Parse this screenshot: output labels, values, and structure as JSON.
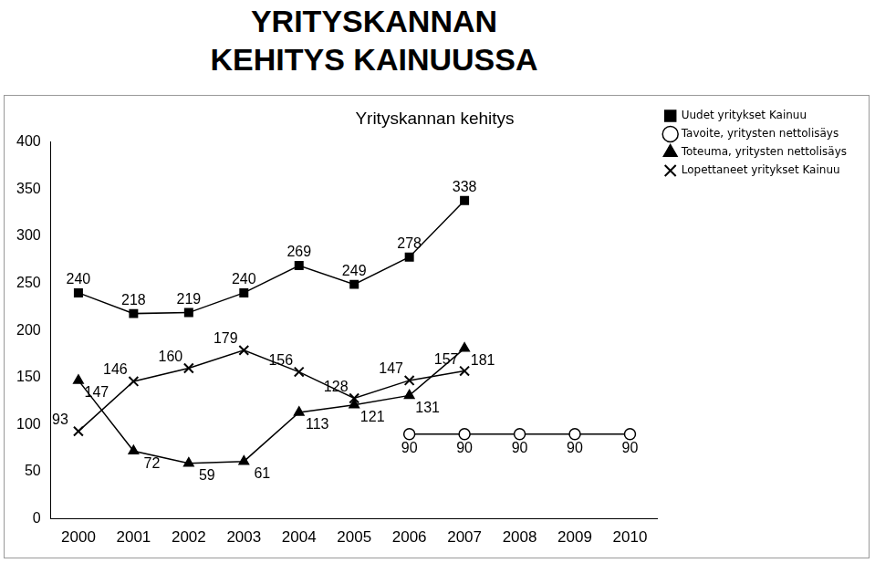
{
  "chart_data": {
    "type": "line",
    "title": "YRITYSKANNAN KEHITYS KAINUUSSA",
    "subtitle": "Yrityskannan kehitys",
    "categories": [
      "2000",
      "2001",
      "2002",
      "2003",
      "2004",
      "2005",
      "2006",
      "2007",
      "2008",
      "2009",
      "2010"
    ],
    "series": [
      {
        "name": "Uudet yritykset Kainuu",
        "color": "#000000",
        "marker": "square",
        "line_style": "solid",
        "values": [
          240,
          218,
          219,
          240,
          269,
          249,
          278,
          338,
          null,
          null,
          null
        ]
      },
      {
        "name": "Tavoite, yritysten nettolisäys",
        "color": "#000000",
        "marker": "circle",
        "line_style": "solid",
        "values": [
          null,
          null,
          null,
          null,
          null,
          null,
          90,
          90,
          90,
          90,
          90
        ]
      },
      {
        "name": "Toteuma, yritysten nettolisäys",
        "color": "#000000",
        "marker": "triangle",
        "line_style": "solid",
        "values": [
          147,
          72,
          59,
          61,
          113,
          121,
          131,
          181,
          null,
          null,
          null
        ]
      },
      {
        "name": "Lopettaneet yritykset Kainuu",
        "color": "#000000",
        "marker": "x",
        "line_style": "solid",
        "values": [
          93,
          146,
          160,
          179,
          156,
          128,
          147,
          157,
          null,
          null,
          null
        ]
      }
    ],
    "ylim": [
      0,
      400
    ],
    "yticks": [
      0,
      50,
      100,
      150,
      200,
      250,
      300,
      350,
      400
    ],
    "grid": false,
    "legend": "upper right",
    "data_labels": true
  }
}
